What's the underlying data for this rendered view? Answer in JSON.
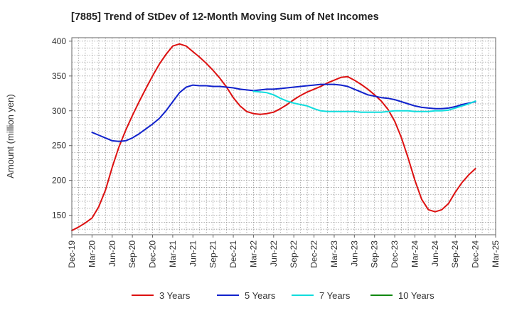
{
  "chart_data": {
    "type": "line",
    "title": "[7885]  Trend of StDev of 12-Month Moving Sum of Net Incomes",
    "xlabel": "",
    "ylabel": "Amount (million yen)",
    "ylim": [
      122,
      405
    ],
    "yticks": [
      150,
      200,
      250,
      300,
      350,
      400
    ],
    "xlim": [
      "2019-12",
      "2025-03"
    ],
    "xticks": [
      "Dec-19",
      "Mar-20",
      "Jun-20",
      "Sep-20",
      "Dec-20",
      "Mar-21",
      "Jun-21",
      "Sep-21",
      "Dec-21",
      "Mar-22",
      "Jun-22",
      "Sep-22",
      "Dec-22",
      "Mar-23",
      "Jun-23",
      "Sep-23",
      "Dec-23",
      "Mar-24",
      "Jun-24",
      "Sep-24",
      "Dec-24",
      "Mar-25"
    ],
    "grid": true,
    "legend_position": "bottom",
    "series": [
      {
        "name": "3 Years",
        "color": "#dd1111",
        "x": [
          "2019-12",
          "2020-01",
          "2020-02",
          "2020-03",
          "2020-04",
          "2020-05",
          "2020-06",
          "2020-07",
          "2020-08",
          "2020-09",
          "2020-10",
          "2020-11",
          "2020-12",
          "2021-01",
          "2021-02",
          "2021-03",
          "2021-04",
          "2021-05",
          "2021-06",
          "2021-07",
          "2021-08",
          "2021-09",
          "2021-10",
          "2021-11",
          "2021-12",
          "2022-01",
          "2022-02",
          "2022-03",
          "2022-04",
          "2022-05",
          "2022-06",
          "2022-07",
          "2022-08",
          "2022-09",
          "2022-10",
          "2022-11",
          "2022-12",
          "2023-01",
          "2023-02",
          "2023-03",
          "2023-04",
          "2023-05",
          "2023-06",
          "2023-07",
          "2023-08",
          "2023-09",
          "2023-10",
          "2023-11",
          "2023-12",
          "2024-01",
          "2024-02",
          "2024-03",
          "2024-04",
          "2024-05",
          "2024-06",
          "2024-07",
          "2024-08",
          "2024-09",
          "2024-10",
          "2024-11",
          "2024-12"
        ],
        "values": [
          128,
          133,
          139,
          146,
          162,
          186,
          219,
          248,
          272,
          293,
          313,
          332,
          350,
          367,
          381,
          393,
          396,
          393,
          385,
          377,
          368,
          358,
          347,
          334,
          319,
          307,
          299,
          296,
          295,
          296,
          298,
          303,
          309,
          316,
          322,
          327,
          331,
          335,
          340,
          344,
          348,
          349,
          344,
          338,
          331,
          323,
          314,
          302,
          285,
          261,
          232,
          200,
          173,
          158,
          155,
          158,
          167,
          183,
          197,
          208,
          217
        ]
      },
      {
        "name": "5 Years",
        "color": "#1122cc",
        "x": [
          "2020-03",
          "2020-04",
          "2020-05",
          "2020-06",
          "2020-07",
          "2020-08",
          "2020-09",
          "2020-10",
          "2020-11",
          "2020-12",
          "2021-01",
          "2021-02",
          "2021-03",
          "2021-04",
          "2021-05",
          "2021-06",
          "2021-07",
          "2021-08",
          "2021-09",
          "2021-10",
          "2021-11",
          "2021-12",
          "2022-01",
          "2022-02",
          "2022-03",
          "2022-04",
          "2022-05",
          "2022-06",
          "2022-07",
          "2022-08",
          "2022-09",
          "2022-10",
          "2022-11",
          "2022-12",
          "2023-01",
          "2023-02",
          "2023-03",
          "2023-04",
          "2023-05",
          "2023-06",
          "2023-07",
          "2023-08",
          "2023-09",
          "2023-10",
          "2023-11",
          "2023-12",
          "2024-01",
          "2024-02",
          "2024-03",
          "2024-04",
          "2024-05",
          "2024-06",
          "2024-07",
          "2024-08",
          "2024-09",
          "2024-10",
          "2024-11",
          "2024-12"
        ],
        "values": [
          269,
          265,
          261,
          257,
          256,
          257,
          261,
          267,
          274,
          281,
          289,
          300,
          313,
          326,
          334,
          337,
          336,
          336,
          335,
          335,
          334,
          333,
          331,
          330,
          329,
          330,
          331,
          331,
          332,
          333,
          334,
          335,
          336,
          337,
          338,
          338,
          338,
          337,
          335,
          331,
          327,
          323,
          321,
          319,
          318,
          316,
          313,
          310,
          307,
          305,
          304,
          303,
          303,
          304,
          306,
          309,
          311,
          313
        ]
      },
      {
        "name": "7 Years",
        "color": "#11dddd",
        "x": [
          "2022-03",
          "2022-04",
          "2022-05",
          "2022-06",
          "2022-07",
          "2022-08",
          "2022-09",
          "2022-10",
          "2022-11",
          "2022-12",
          "2023-01",
          "2023-02",
          "2023-03",
          "2023-04",
          "2023-05",
          "2023-06",
          "2023-07",
          "2023-08",
          "2023-09",
          "2023-10",
          "2023-11",
          "2023-12",
          "2024-01",
          "2024-02",
          "2024-03",
          "2024-04",
          "2024-05",
          "2024-06",
          "2024-07",
          "2024-08",
          "2024-09",
          "2024-10",
          "2024-11",
          "2024-12"
        ],
        "values": [
          328,
          327,
          326,
          323,
          318,
          314,
          311,
          309,
          307,
          303,
          300,
          299,
          299,
          299,
          299,
          299,
          298,
          298,
          298,
          298,
          299,
          300,
          300,
          300,
          299,
          299,
          299,
          300,
          300,
          301,
          304,
          307,
          310,
          314
        ]
      },
      {
        "name": "10 Years",
        "color": "#118811",
        "x": [],
        "values": []
      }
    ]
  }
}
